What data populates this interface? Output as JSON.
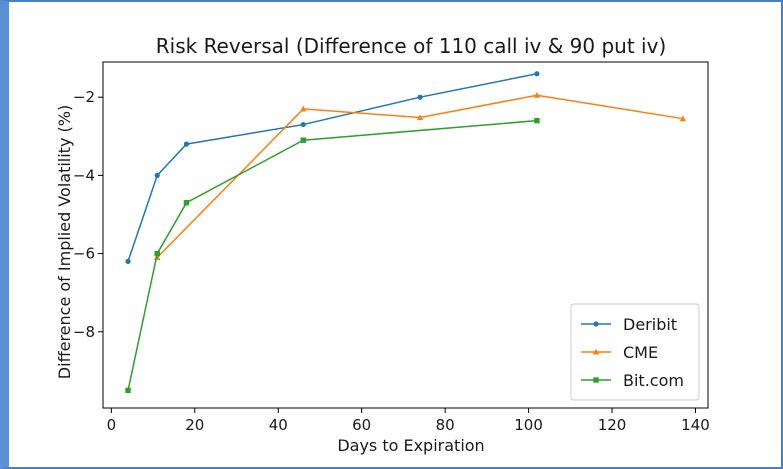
{
  "chart_data": {
    "type": "line",
    "title": "Risk Reversal (Difference of 110 call iv & 90 put iv)",
    "xlabel": "Days to Expiration",
    "ylabel": "Difference of Implied Volatility (%)",
    "xlim": [
      -2,
      143
    ],
    "ylim": [
      -9.95,
      -1.1
    ],
    "xticks": [
      0,
      20,
      40,
      60,
      80,
      100,
      120,
      140
    ],
    "yticks": [
      -8,
      -6,
      -4,
      -2
    ],
    "grid": false,
    "legend_position": "lower right",
    "series": [
      {
        "name": "Deribit",
        "color": "#1f77b4",
        "marker": "circle",
        "x": [
          4,
          11,
          18,
          46,
          74,
          102
        ],
        "y": [
          -6.2,
          -4.0,
          -3.2,
          -2.7,
          -2.0,
          -1.4
        ]
      },
      {
        "name": "CME",
        "color": "#ff7f0e",
        "marker": "triangle",
        "x": [
          11,
          46,
          74,
          102,
          137
        ],
        "y": [
          -6.1,
          -2.3,
          -2.52,
          -1.95,
          -2.55
        ]
      },
      {
        "name": "Bit.com",
        "color": "#2ca02c",
        "marker": "square",
        "x": [
          4,
          11,
          18,
          46,
          102
        ],
        "y": [
          -9.5,
          -6.0,
          -4.7,
          -3.1,
          -2.6
        ]
      }
    ]
  }
}
